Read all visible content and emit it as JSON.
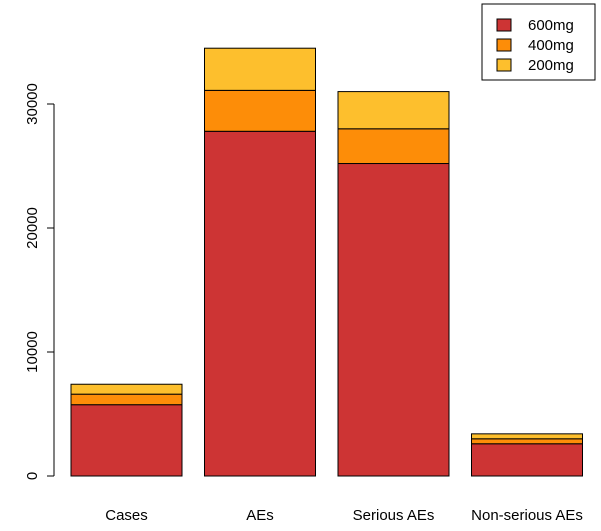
{
  "chart_data": {
    "type": "bar",
    "stacked": true,
    "title": "",
    "xlabel": "",
    "ylabel": "",
    "ylim": [
      0,
      35000
    ],
    "yticks": [
      0,
      10000,
      20000,
      30000
    ],
    "ytick_labels": [
      "0",
      "10000",
      "20000",
      "30000"
    ],
    "categories": [
      "Cases",
      "AEs",
      "Serious AEs",
      "Non-serious AEs"
    ],
    "series": [
      {
        "name": "600mg",
        "color": "#cd3434",
        "values": [
          5750,
          27800,
          25200,
          2600
        ]
      },
      {
        "name": "400mg",
        "color": "#fd8d08",
        "values": [
          850,
          3300,
          2800,
          400
        ]
      },
      {
        "name": "200mg",
        "color": "#fdbf2d",
        "values": [
          800,
          3400,
          3000,
          400
        ]
      }
    ],
    "legend_order": [
      "600mg",
      "400mg",
      "200mg"
    ],
    "legend_position": "top-right"
  }
}
